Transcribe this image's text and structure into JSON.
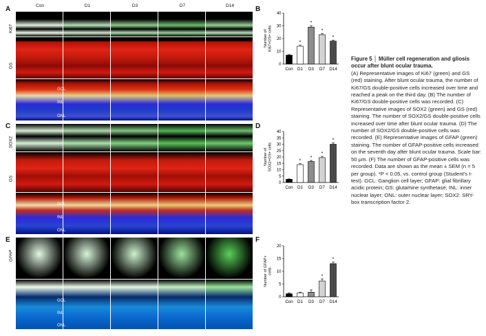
{
  "figure": {
    "columns": [
      "Con",
      "D1",
      "D3",
      "D7",
      "D14"
    ],
    "panels": {
      "A": {
        "label": "A",
        "rows": [
          "Ki67",
          "GS"
        ],
        "layers": [
          "GCL",
          "INL",
          "ONL"
        ]
      },
      "C": {
        "label": "C",
        "rows": [
          "SOX2",
          "GS"
        ],
        "layers": [
          "GCL",
          "INL",
          "ONL"
        ]
      },
      "E": {
        "label": "E",
        "rows": [
          "GFAP"
        ],
        "layers": [
          "GCL",
          "INL",
          "ONL"
        ]
      }
    },
    "colors": {
      "green": "#2ea02e",
      "red": "#d41a10",
      "blue": "#1f4bd8",
      "black": "#000000"
    }
  },
  "charts": {
    "B": {
      "label": "B"
    },
    "D": {
      "label": "D"
    },
    "F": {
      "label": "F"
    }
  },
  "chart_data": [
    {
      "type": "bar",
      "panel": "B",
      "categories": [
        "Con",
        "D1",
        "D3",
        "D7",
        "D14"
      ],
      "values": [
        7,
        14,
        29,
        23,
        18
      ],
      "errors": [
        0.5,
        0.8,
        1.2,
        1.0,
        0.8
      ],
      "significant": [
        false,
        true,
        true,
        true,
        true
      ],
      "ylabel_lines": [
        "Number of",
        "Ki67+GS+ cells"
      ],
      "ylim": [
        0,
        40
      ],
      "yticks": [
        0,
        10,
        20,
        30,
        40
      ],
      "bar_colors": [
        "#000000",
        "#ffffff",
        "#8c8c8c",
        "#d2d2d2",
        "#4a4a4a"
      ]
    },
    {
      "type": "bar",
      "panel": "D",
      "categories": [
        "Con",
        "D1",
        "D3",
        "D7",
        "D14"
      ],
      "values": [
        2.5,
        14,
        16.5,
        19.5,
        30
      ],
      "errors": [
        0.3,
        0.8,
        0.8,
        1.0,
        1.2
      ],
      "significant": [
        false,
        true,
        true,
        true,
        true
      ],
      "ylabel_lines": [
        "Number of",
        "SOX2+GS+ cells"
      ],
      "ylim": [
        0,
        40
      ],
      "yticks": [
        0,
        5,
        10,
        15,
        20,
        25,
        30,
        35,
        40
      ],
      "bar_colors": [
        "#000000",
        "#ffffff",
        "#8c8c8c",
        "#d2d2d2",
        "#4a4a4a"
      ]
    },
    {
      "type": "bar",
      "panel": "F",
      "categories": [
        "Con",
        "D1",
        "D3",
        "D7",
        "D14"
      ],
      "values": [
        1.2,
        1.5,
        1.8,
        6.2,
        13
      ],
      "errors": [
        0.3,
        0.3,
        0.9,
        0.8,
        0.6
      ],
      "significant": [
        false,
        false,
        false,
        true,
        true
      ],
      "ylabel_lines": [
        "Number of GFAP+",
        "cells"
      ],
      "ylim": [
        0,
        20
      ],
      "yticks": [
        0,
        5,
        10,
        15,
        20
      ],
      "bar_colors": [
        "#000000",
        "#ffffff",
        "#8c8c8c",
        "#d2d2d2",
        "#4a4a4a"
      ]
    }
  ],
  "caption": {
    "title": "Figure 5 │ Müller cell regeneration and gliosis occur after blunt ocular trauma.",
    "body": "(A) Representative images of Ki67 (green) and GS (red) staining. After blunt ocular trauma, the number of Ki67/GS double-positive cells increased over time and reached a peak on the third day. (B) The number of Ki67/GS double-positive cells was recorded. (C) Representative images of SOX2 (green) and GS (red) staining. The number of SOX2/GS double-positive cells increased over time after blunt ocular trauma. (D) The number of SOX2/GS double-positive cells was recorded. (E) Representative images of GFAP (green) staining. The number of GFAP-positive cells increased on the seventh day after blunt ocular trauma. Scale bar: 50 µm. (F) The number of GFAP-positive cells was recorded. Data are shown as the mean ± SEM (n = 5 per group). *P < 0.05, vs. control group (Student's t-test). GCL: Ganglion cell layer; GFAP: glial fibrillary acidic protein; GS: glutamine synthetase; INL: inner nuclear layer; ONL: outer nuclear layer; SOX2: SRY-box transcription factor 2."
  }
}
